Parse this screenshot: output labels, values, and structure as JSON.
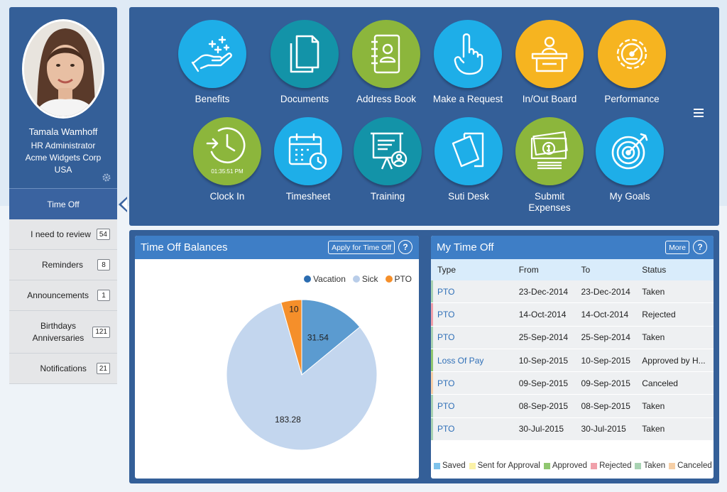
{
  "profile": {
    "name": "Tamala Wamhoff",
    "title": "HR Administrator",
    "company": "Acme Widgets Corp",
    "country": "USA"
  },
  "nav": {
    "active": "Time Off",
    "items": [
      {
        "label": "I need to review",
        "count": "54"
      },
      {
        "label": "Reminders",
        "count": "8"
      },
      {
        "label": "Announcements",
        "count": "1"
      },
      {
        "label_line1": "Birthdays",
        "label_line2": "Anniversaries",
        "count": "121"
      },
      {
        "label": "Notifications",
        "count": "21"
      }
    ]
  },
  "apps": [
    {
      "label": "Benefits",
      "icon": "benefits-hand-icon",
      "color": "#1eaee8"
    },
    {
      "label": "Documents",
      "icon": "documents-icon",
      "color": "#1393a8"
    },
    {
      "label": "Address Book",
      "icon": "address-book-icon",
      "color": "#8cb63c"
    },
    {
      "label": "Make a Request",
      "icon": "raised-hand-icon",
      "color": "#1eaee8"
    },
    {
      "label": "In/Out Board",
      "icon": "desk-person-icon",
      "color": "#f6b420"
    },
    {
      "label": "Performance",
      "icon": "gear-gauge-icon",
      "color": "#f6b420"
    },
    {
      "label": "Clock In",
      "icon": "clock-icon",
      "color": "#8cb63c",
      "time": "01:35:51 PM"
    },
    {
      "label": "Timesheet",
      "icon": "calendar-clock-icon",
      "color": "#1eaee8"
    },
    {
      "label": "Training",
      "icon": "presentation-board-icon",
      "color": "#1393a8"
    },
    {
      "label": "Suti Desk",
      "icon": "tickets-icon",
      "color": "#1eaee8"
    },
    {
      "label_line1": "Submit",
      "label_line2": "Expenses",
      "icon": "money-icon",
      "color": "#8cb63c"
    },
    {
      "label": "My Goals",
      "icon": "target-icon",
      "color": "#1eaee8"
    }
  ],
  "balances": {
    "title": "Time Off Balances",
    "apply_btn": "Apply for Time Off",
    "help": "?",
    "chart_data": {
      "type": "pie",
      "title": "",
      "categories": [
        "Vacation",
        "Sick",
        "PTO"
      ],
      "values": [
        31.54,
        183.28,
        10
      ],
      "colors": [
        "#5b9bd0",
        "#c3d6ee",
        "#f58f2a"
      ],
      "legend": "top-right",
      "labels": [
        "31.54",
        "183.28",
        "10"
      ]
    }
  },
  "mytimeoff": {
    "title": "My Time Off",
    "more_btn": "More",
    "help": "?",
    "columns": [
      "Type",
      "From",
      "To",
      "Status"
    ],
    "rows": [
      {
        "type": "PTO",
        "from": "23-Dec-2014",
        "to": "23-Dec-2014",
        "status": "Taken",
        "color": "#a9d3b3"
      },
      {
        "type": "PTO",
        "from": "14-Oct-2014",
        "to": "14-Oct-2014",
        "status": "Rejected",
        "color": "#f0a0aa"
      },
      {
        "type": "PTO",
        "from": "25-Sep-2014",
        "to": "25-Sep-2014",
        "status": "Taken",
        "color": "#a9d3b3"
      },
      {
        "type": "Loss Of Pay",
        "from": "10-Sep-2015",
        "to": "10-Sep-2015",
        "status": "Approved by H...",
        "color": "#90c770"
      },
      {
        "type": "PTO",
        "from": "09-Sep-2015",
        "to": "09-Sep-2015",
        "status": "Canceled",
        "color": "#f6cfa6"
      },
      {
        "type": "PTO",
        "from": "08-Sep-2015",
        "to": "08-Sep-2015",
        "status": "Taken",
        "color": "#a9d3b3"
      },
      {
        "type": "PTO",
        "from": "30-Jul-2015",
        "to": "30-Jul-2015",
        "status": "Taken",
        "color": "#a9d3b3"
      }
    ],
    "status_legend": [
      {
        "label": "Saved",
        "color": "#7ec3ec"
      },
      {
        "label": "Sent for Approval",
        "color": "#fbf2a8"
      },
      {
        "label": "Approved",
        "color": "#90c770"
      },
      {
        "label": "Rejected",
        "color": "#f0a0aa"
      },
      {
        "label": "Taken",
        "color": "#a9d3b3"
      },
      {
        "label": "Canceled",
        "color": "#f6cfa6"
      }
    ]
  }
}
